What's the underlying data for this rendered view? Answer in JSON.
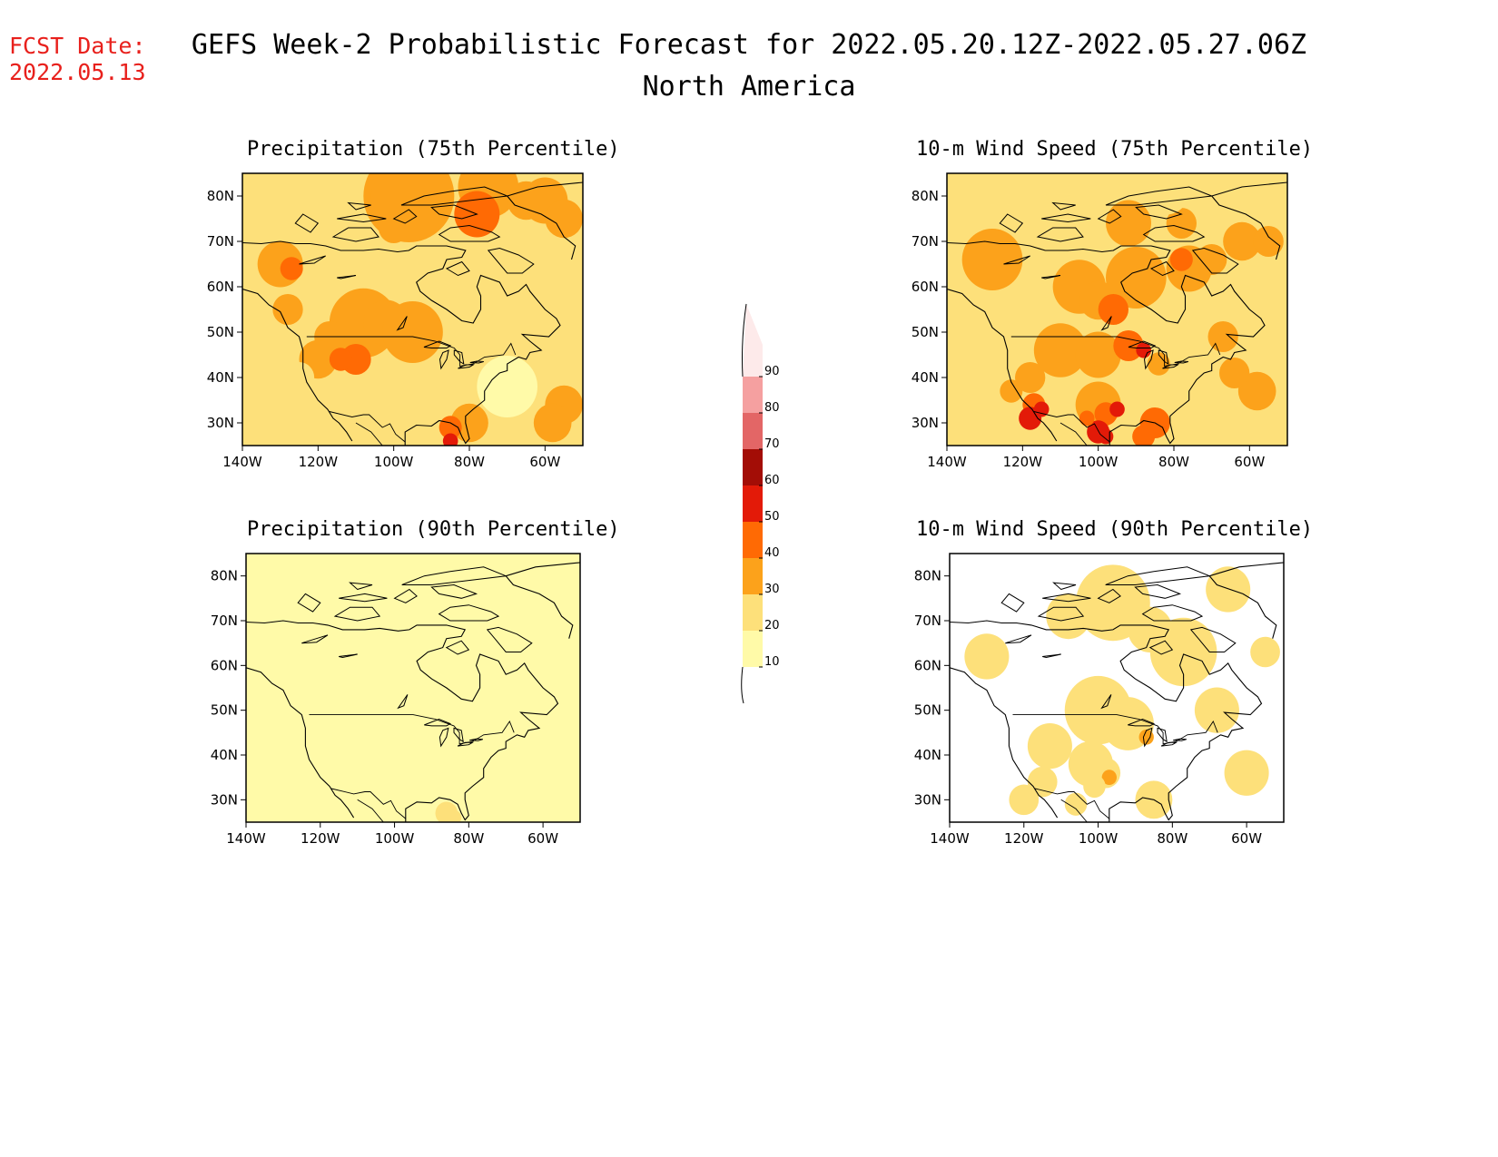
{
  "forecast_date": {
    "label": "FCST Date:",
    "value": "2022.05.13"
  },
  "title": "GEFS Week-2 Probabilistic Forecast for 2022.05.20.12Z-2022.05.27.06Z",
  "subtitle": "North America",
  "lat_labels": [
    "80N",
    "70N",
    "60N",
    "50N",
    "40N",
    "30N"
  ],
  "lon_labels": [
    "140W",
    "120W",
    "100W",
    "80W",
    "60W"
  ],
  "colorbar": {
    "levels": [
      "10",
      "20",
      "30",
      "40",
      "50",
      "60",
      "70",
      "80",
      "90"
    ],
    "colors": [
      "#fffaa8",
      "#fde07a",
      "#fca21b",
      "#ff6a04",
      "#e31a08",
      "#a30d06",
      "#e36666",
      "#f5a0a0",
      "#fdeaea"
    ]
  },
  "panels": [
    {
      "id": "precip75",
      "title": "Precipitation (75th Percentile)",
      "base_color": "#fde07a",
      "bins": [
        1,
        2,
        3,
        4
      ]
    },
    {
      "id": "wind75",
      "title": "10-m Wind Speed (75th Percentile)",
      "base_color": "#fde07a",
      "bins": [
        0,
        1,
        2,
        3,
        4,
        5
      ]
    },
    {
      "id": "precip90",
      "title": "Precipitation (90th Percentile)",
      "base_color": "#fffaa8",
      "bins": [
        0,
        1
      ]
    },
    {
      "id": "wind90",
      "title": "10-m Wind Speed (90th Percentile)",
      "base_color": "#ffffff",
      "bins": [
        0,
        1,
        2
      ]
    }
  ],
  "map_extent": {
    "lon": [
      -140,
      -50
    ],
    "lat": [
      25,
      85
    ]
  }
}
